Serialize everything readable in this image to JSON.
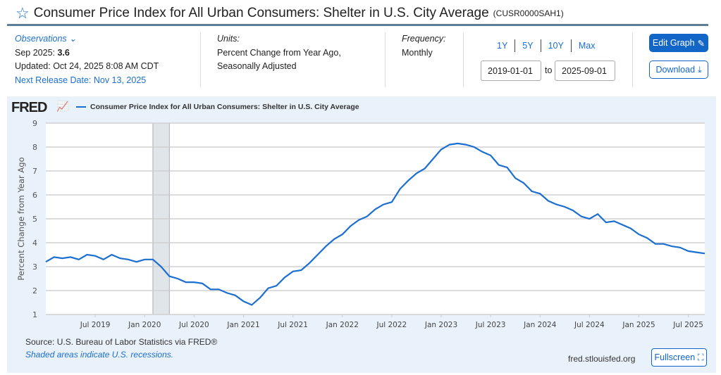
{
  "header": {
    "title": "Consumer Price Index for All Urban Consumers: Shelter in U.S. City Average",
    "series_id": "(CUSR0000SAH1)"
  },
  "observations": {
    "label": "Observations",
    "latest_label": "Sep 2025:",
    "latest_value": "3.6",
    "updated": "Updated: Oct 24, 2025 8:08 AM CDT",
    "next_release": "Next Release Date: Nov 13, 2025"
  },
  "units": {
    "label": "Units:",
    "line1": "Percent Change from Year Ago,",
    "line2": "Seasonally Adjusted"
  },
  "frequency": {
    "label": "Frequency:",
    "value": "Monthly"
  },
  "ranges": [
    "1Y",
    "5Y",
    "10Y",
    "Max"
  ],
  "dates": {
    "start": "2019-01-01",
    "to": "to",
    "end": "2025-09-01"
  },
  "buttons": {
    "edit": "Edit Graph",
    "download": "Download",
    "fullscreen": "Fullscreen"
  },
  "brand": "FRED",
  "footer": {
    "source": "Source: U.S. Bureau of Labor Statistics via FRED®",
    "recession_note": "Shaded areas indicate U.S. recessions.",
    "site": "fred.stlouisfed.org"
  },
  "colors": {
    "line": "#1b6fd1",
    "recession": "#e0e5ea"
  },
  "chart_data": {
    "type": "line",
    "title": "Consumer Price Index for All Urban Consumers: Shelter in U.S. City Average",
    "ylabel": "Percent Change from Year Ago",
    "xlabel": "",
    "ylim": [
      1,
      9
    ],
    "yticks": [
      "1",
      "2",
      "3",
      "4",
      "5",
      "6",
      "7",
      "8",
      "9"
    ],
    "xticks": [
      "Jul 2019",
      "Jan 2020",
      "Jul 2020",
      "Jan 2021",
      "Jul 2021",
      "Jan 2022",
      "Jul 2022",
      "Jan 2023",
      "Jul 2023",
      "Jan 2024",
      "Jul 2024",
      "Jan 2025",
      "Jul 2025"
    ],
    "xtick_month_index": [
      6,
      12,
      18,
      24,
      30,
      36,
      42,
      48,
      54,
      60,
      66,
      72,
      78
    ],
    "start": "2019-01",
    "frequency": "monthly",
    "recession_month_index": [
      13,
      15
    ],
    "series": [
      {
        "name": "Consumer Price Index for All Urban Consumers: Shelter in U.S. City Average",
        "values": [
          3.2,
          3.4,
          3.35,
          3.4,
          3.3,
          3.5,
          3.45,
          3.3,
          3.5,
          3.35,
          3.3,
          3.2,
          3.3,
          3.3,
          3.0,
          2.6,
          2.5,
          2.35,
          2.35,
          2.3,
          2.05,
          2.05,
          1.9,
          1.8,
          1.55,
          1.4,
          1.7,
          2.1,
          2.2,
          2.55,
          2.8,
          2.85,
          3.15,
          3.5,
          3.85,
          4.15,
          4.35,
          4.7,
          4.95,
          5.1,
          5.4,
          5.6,
          5.7,
          6.25,
          6.6,
          6.9,
          7.1,
          7.5,
          7.9,
          8.1,
          8.15,
          8.1,
          8.0,
          7.8,
          7.65,
          7.25,
          7.15,
          6.7,
          6.5,
          6.15,
          6.05,
          5.75,
          5.6,
          5.5,
          5.35,
          5.1,
          5.0,
          5.2,
          4.85,
          4.9,
          4.75,
          4.6,
          4.35,
          4.2,
          3.95,
          3.95,
          3.85,
          3.8,
          3.65,
          3.6,
          3.55
        ]
      }
    ]
  }
}
